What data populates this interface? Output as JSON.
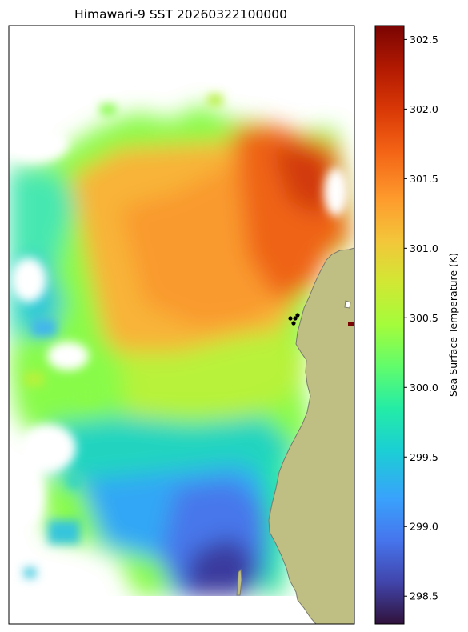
{
  "chart_data": {
    "type": "heatmap",
    "title": "Himawari-9 SST 20260322100000",
    "colorbar": {
      "label": "Sea Surface Temperature (K)",
      "vmin": 298.3,
      "vmax": 302.6,
      "ticks": [
        298.5,
        299.0,
        299.5,
        300.0,
        300.5,
        301.0,
        301.5,
        302.0,
        302.5
      ],
      "tick_labels": [
        "298.5",
        "299.0",
        "299.5",
        "300.0",
        "300.5",
        "301.0",
        "301.5",
        "302.0",
        "302.5"
      ],
      "colormap": "turbo"
    },
    "field_summary": [
      {
        "region": "north-east open water",
        "sst_k": 301.8
      },
      {
        "region": "central",
        "sst_k": 301.0
      },
      {
        "region": "mid band",
        "sst_k": 300.1
      },
      {
        "region": "south",
        "sst_k": 299.4
      },
      {
        "region": "south near coast",
        "sst_k": 298.7
      }
    ],
    "point_markers": 4,
    "land_color": "#bfbf84",
    "axes_frame_color": "#000000"
  }
}
